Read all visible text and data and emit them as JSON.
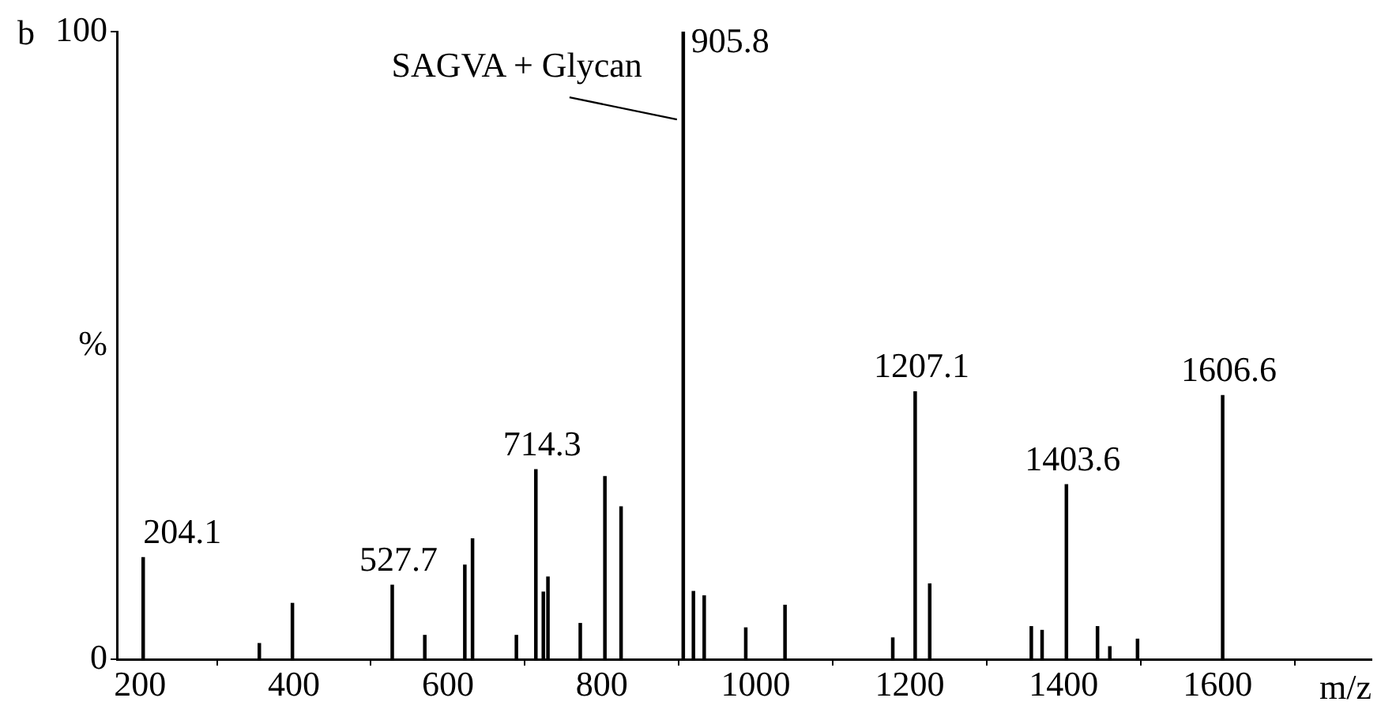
{
  "chart_data": {
    "type": "bar",
    "xlabel": "m/z",
    "ylabel": "%",
    "x": [
      204.1,
      355,
      398,
      527.7,
      570,
      622,
      632,
      689,
      714.3,
      724,
      730,
      772,
      804,
      825,
      905.8,
      919,
      933,
      987,
      1038,
      1178,
      1207.1,
      1226,
      1358,
      1372,
      1403.6,
      1444,
      1460,
      1496,
      1606.6
    ],
    "values": [
      16.2,
      2.5,
      8.9,
      11.8,
      3.8,
      15.0,
      19.2,
      3.8,
      30.2,
      10.7,
      13.1,
      5.7,
      29.1,
      24.3,
      100,
      10.8,
      10.1,
      5,
      8.6,
      3.4,
      42.6,
      12,
      5.2,
      4.6,
      27.8,
      5.2,
      2,
      3.2,
      42.0
    ],
    "color": "#000000",
    "xlim": [
      170,
      1800
    ],
    "xticks": [
      200,
      400,
      600,
      800,
      1000,
      1200,
      1400,
      1600
    ],
    "ylim": [
      0,
      100
    ],
    "yticks": [
      0,
      100
    ],
    "annotations": [
      "b",
      {
        "text": "SAGVA + Glycan",
        "x": 905.8,
        "y": 86
      },
      {
        "text": "204.1",
        "x": 204.1,
        "y": 16.2
      },
      {
        "text": "527.7",
        "x": 527.7,
        "y": 11.8
      },
      {
        "text": "714.3",
        "x": 714.3,
        "y": 30.2
      },
      {
        "text": "905.8",
        "x": 905.8,
        "y": 100
      },
      {
        "text": "1207.1",
        "x": 1207.1,
        "y": 42.6
      },
      {
        "text": "1403.6",
        "x": 1403.6,
        "y": 27.8
      },
      {
        "text": "1606.6",
        "x": 1606.6,
        "y": 42.0
      }
    ],
    "grid": false,
    "legend": false
  }
}
